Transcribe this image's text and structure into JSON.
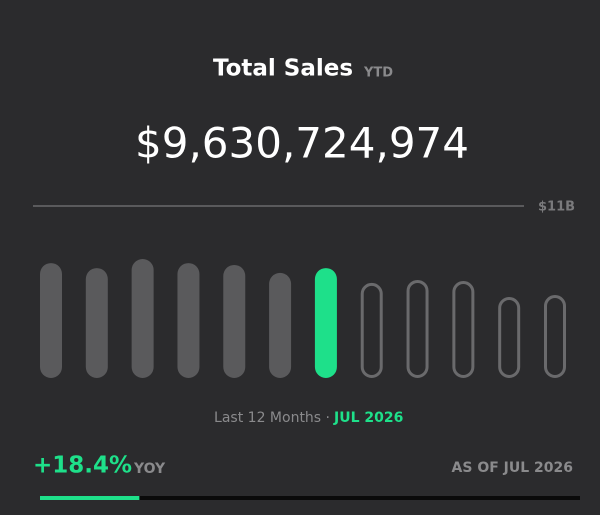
{
  "chart_data": {
    "type": "pill-bar",
    "title": "Total Sales",
    "subtitle": "YTD",
    "headline": "$9,630,724,974",
    "values": [
      7350000000,
      7030000000,
      7610000000,
      7350000000,
      7230000000,
      6720000000,
      7030000000,
      6080000000,
      6270000000,
      6200000000,
      5180000000,
      5310000000
    ],
    "colors": [
      "#5a5a5c",
      "#5a5a5c",
      "#5a5a5c",
      "#5a5a5c",
      "#5a5a5c",
      "#5a5a5c",
      "#1ee08a",
      "#6a6a6c",
      "#6a6a6c",
      "#6a6a6c",
      "#6a6a6c",
      "#6a6a6c"
    ],
    "outlined": [
      false,
      false,
      false,
      false,
      false,
      false,
      false,
      true,
      true,
      true,
      true,
      true
    ],
    "ylim": [
      0,
      11000000000
    ],
    "yticks": [
      {
        "value": 11000000000,
        "label": "$11B"
      }
    ],
    "caption": "Last 12 Months ·",
    "caption_period": "JUL 2026",
    "progress": {
      "value": 18.4,
      "label": "+18.4%",
      "note": "YOY",
      "lim": [
        0,
        100
      ],
      "color": "#1ee08a"
    },
    "as_of": "AS OF JUL 2026"
  }
}
